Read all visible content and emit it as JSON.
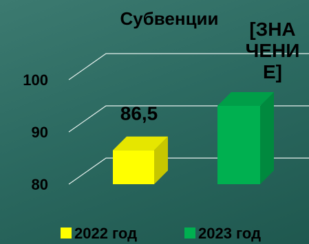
{
  "chart_data": {
    "type": "bar",
    "title": "Субвенции",
    "categories": [
      ""
    ],
    "series": [
      {
        "name": "2022 год",
        "values": [
          86.5
        ],
        "color": "#ffff00",
        "label": "86,5"
      },
      {
        "name": "2023 год",
        "values": [
          95
        ],
        "color": "#00b050",
        "label": "[ЗНАЧЕНИЕ]"
      }
    ],
    "yticks": [
      "80",
      "90",
      "100"
    ],
    "ylim": [
      80,
      100
    ],
    "grid": true,
    "legend": "bottom",
    "style": "3d-bar"
  }
}
